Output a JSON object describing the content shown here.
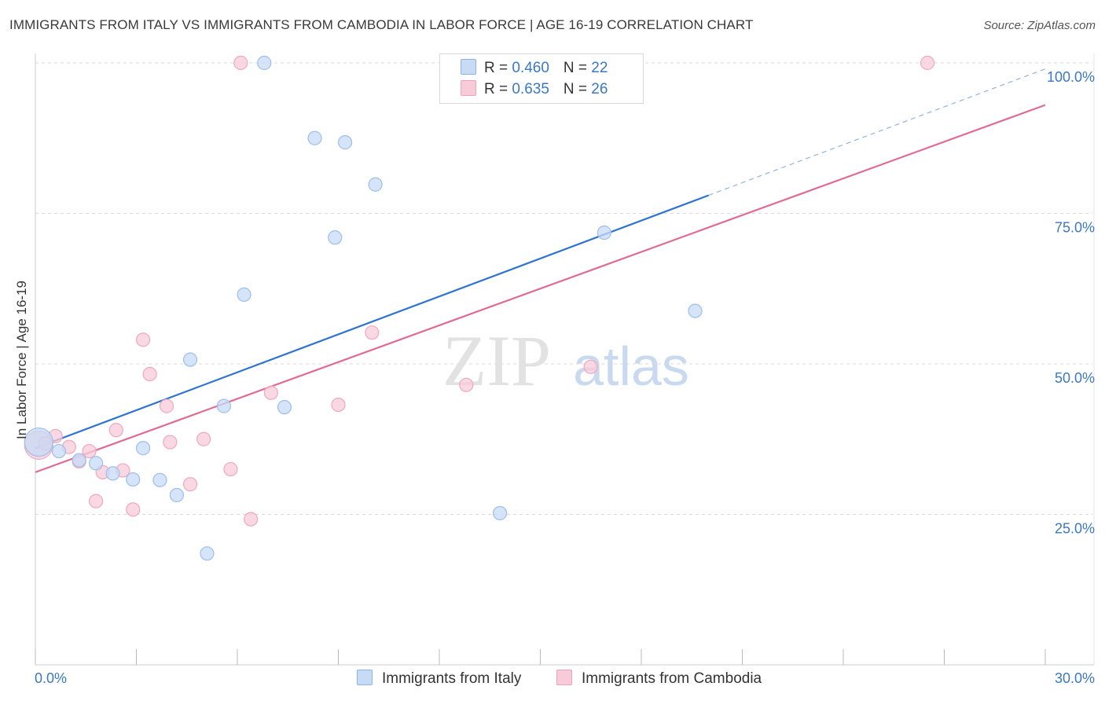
{
  "title": "IMMIGRANTS FROM ITALY VS IMMIGRANTS FROM CAMBODIA IN LABOR FORCE | AGE 16-19 CORRELATION CHART",
  "source": "Source: ZipAtlas.com",
  "watermark": {
    "zip": "ZIP",
    "atlas": "atlas"
  },
  "legend": {
    "italy": {
      "r_label": "R = ",
      "r_value": "0.460",
      "n_label": "N = ",
      "n_value": "22"
    },
    "cambodia": {
      "r_label": "R = ",
      "r_value": "0.635",
      "n_label": "N = ",
      "n_value": "26"
    }
  },
  "chart_data": {
    "type": "scatter",
    "title": "IMMIGRANTS FROM ITALY VS IMMIGRANTS FROM CAMBODIA IN LABOR FORCE | AGE 16-19 CORRELATION CHART",
    "xlabel": "",
    "ylabel": "In Labor Force | Age 16-19",
    "xlim": [
      0,
      30
    ],
    "ylim": [
      0,
      100
    ],
    "x_tick_labels": [
      "0.0%",
      "30.0%"
    ],
    "y_ticks": [
      25,
      50,
      75,
      100
    ],
    "y_tick_labels": [
      "25.0%",
      "50.0%",
      "75.0%",
      "100.0%"
    ],
    "grid": true,
    "legend_position": "top-center",
    "series": [
      {
        "name": "Immigrants from Italy",
        "color": "#9dbfea",
        "fill": "#c7dbf5",
        "line_color": "#2f74d0",
        "trend": {
          "x0": 0,
          "y0": 36.0,
          "x1": 20,
          "y1": 78.0,
          "dashed_to_x": 30,
          "dashed_to_y": 99.0
        },
        "points": [
          {
            "x": 0.1,
            "y": 37.0,
            "big": true
          },
          {
            "x": 0.7,
            "y": 35.5
          },
          {
            "x": 1.3,
            "y": 34.0
          },
          {
            "x": 1.8,
            "y": 33.5
          },
          {
            "x": 2.3,
            "y": 31.8
          },
          {
            "x": 2.9,
            "y": 30.8
          },
          {
            "x": 3.2,
            "y": 36.0
          },
          {
            "x": 3.7,
            "y": 30.7
          },
          {
            "x": 4.2,
            "y": 28.2
          },
          {
            "x": 4.6,
            "y": 50.7
          },
          {
            "x": 5.1,
            "y": 18.5
          },
          {
            "x": 5.6,
            "y": 43.0
          },
          {
            "x": 6.2,
            "y": 61.5
          },
          {
            "x": 6.8,
            "y": 100.0
          },
          {
            "x": 7.4,
            "y": 42.8
          },
          {
            "x": 8.3,
            "y": 87.5
          },
          {
            "x": 8.9,
            "y": 71.0
          },
          {
            "x": 9.2,
            "y": 86.8
          },
          {
            "x": 10.1,
            "y": 79.8
          },
          {
            "x": 13.8,
            "y": 25.2
          },
          {
            "x": 16.9,
            "y": 71.8
          },
          {
            "x": 19.6,
            "y": 58.8
          }
        ]
      },
      {
        "name": "Immigrants from Cambodia",
        "color": "#f0a8bf",
        "fill": "#f8cbd9",
        "line_color": "#e06b95",
        "trend": {
          "x0": 0,
          "y0": 32.0,
          "x1": 30,
          "y1": 93.0
        },
        "points": [
          {
            "x": 0.1,
            "y": 36.5,
            "big": true
          },
          {
            "x": 0.6,
            "y": 38.0
          },
          {
            "x": 1.0,
            "y": 36.2
          },
          {
            "x": 1.3,
            "y": 33.8
          },
          {
            "x": 1.6,
            "y": 35.5
          },
          {
            "x": 1.8,
            "y": 27.2
          },
          {
            "x": 2.0,
            "y": 32.0
          },
          {
            "x": 2.4,
            "y": 39.0
          },
          {
            "x": 2.6,
            "y": 32.3
          },
          {
            "x": 2.9,
            "y": 25.8
          },
          {
            "x": 3.2,
            "y": 54.0
          },
          {
            "x": 3.4,
            "y": 48.3
          },
          {
            "x": 3.9,
            "y": 43.0
          },
          {
            "x": 4.0,
            "y": 37.0
          },
          {
            "x": 4.6,
            "y": 30.0
          },
          {
            "x": 5.0,
            "y": 37.5
          },
          {
            "x": 5.8,
            "y": 32.5
          },
          {
            "x": 6.1,
            "y": 100.0
          },
          {
            "x": 6.4,
            "y": 24.2
          },
          {
            "x": 7.0,
            "y": 45.2
          },
          {
            "x": 9.0,
            "y": 43.2
          },
          {
            "x": 10.0,
            "y": 55.2
          },
          {
            "x": 12.8,
            "y": 46.5
          },
          {
            "x": 16.5,
            "y": 49.5
          },
          {
            "x": 26.5,
            "y": 100.0
          },
          {
            "x": 0.3,
            "y": 36.8
          }
        ]
      }
    ]
  }
}
